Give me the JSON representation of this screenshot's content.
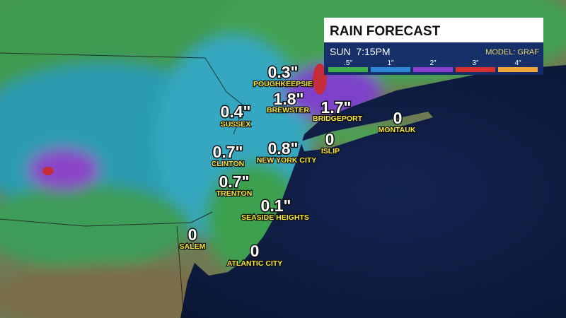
{
  "header": {
    "title": "RAIN FORECAST",
    "time": "SUN  7:15PM",
    "model": "MODEL: GRAF"
  },
  "legend": {
    "items": [
      {
        "label": ".5″",
        "color": "#3fae49"
      },
      {
        "label": "1″",
        "color": "#2b86d6"
      },
      {
        "label": "2″",
        "color": "#8a3fd1"
      },
      {
        "label": "3″",
        "color": "#d62f2f"
      },
      {
        "label": "4″",
        "color": "#f0a53a"
      }
    ]
  },
  "cities": [
    {
      "value": "0.3\"",
      "name": "POUGHKEEPSIE"
    },
    {
      "value": "1.8\"",
      "name": "BREWSTER"
    },
    {
      "value": "0.4\"",
      "name": "SUSSEX"
    },
    {
      "value": "1.7\"",
      "name": "BRIDGEPORT"
    },
    {
      "value": "0",
      "name": "MONTAUK"
    },
    {
      "value": "0.7\"",
      "name": "CLINTON"
    },
    {
      "value": "0.8\"",
      "name": "NEW YORK CITY"
    },
    {
      "value": "0",
      "name": "ISLIP"
    },
    {
      "value": "0.7\"",
      "name": "TRENTON"
    },
    {
      "value": "0.1\"",
      "name": "SEASIDE HEIGHTS"
    },
    {
      "value": "0",
      "name": "SALEM"
    },
    {
      "value": "0",
      "name": "ATLANTIC CITY"
    }
  ]
}
